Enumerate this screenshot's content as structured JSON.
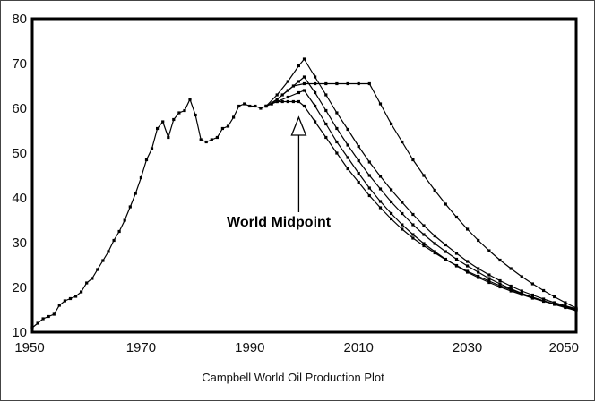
{
  "chart_data": {
    "type": "line",
    "title": "",
    "xlabel": "Campbell World Oil Production Plot",
    "ylabel": "",
    "xlim": [
      1950,
      2050
    ],
    "ylim": [
      10,
      80
    ],
    "x_ticks": [
      1950,
      1970,
      1990,
      2010,
      2030,
      2050
    ],
    "y_ticks": [
      10,
      20,
      30,
      40,
      50,
      60,
      70,
      80
    ],
    "grid": false,
    "legend": "none",
    "annotation": {
      "text": "World Midpoint",
      "points_to": [
        1999,
        62
      ]
    },
    "series": [
      {
        "x": [
          1950,
          1951,
          1952,
          1953,
          1954,
          1955,
          1956,
          1957,
          1958,
          1959,
          1960,
          1961,
          1962,
          1963,
          1964,
          1965,
          1966,
          1967,
          1968,
          1969,
          1970,
          1971,
          1972,
          1973,
          1974,
          1975,
          1976,
          1977,
          1978,
          1979,
          1980,
          1981,
          1982,
          1983,
          1984,
          1985,
          1986,
          1987,
          1988,
          1989,
          1990,
          1991,
          1992,
          1993,
          1994,
          1995,
          1996,
          1997,
          1998,
          1999,
          2000,
          2002,
          2004,
          2006,
          2008,
          2010,
          2012,
          2014,
          2016,
          2018,
          2020,
          2022,
          2024,
          2026,
          2028,
          2030,
          2032,
          2034,
          2036,
          2038,
          2040,
          2042,
          2044,
          2046,
          2048,
          2050
        ],
        "values": [
          11,
          12,
          13,
          13.5,
          14,
          16,
          17,
          17.5,
          18,
          19,
          21,
          22,
          24,
          26,
          28,
          30.5,
          32.5,
          35,
          38,
          41,
          44.5,
          48.5,
          51,
          55.5,
          57,
          53.5,
          57.5,
          59,
          59.5,
          62,
          58.5,
          53,
          52.5,
          53,
          53.5,
          55.5,
          56,
          58,
          60.5,
          61,
          60.5,
          60.5,
          60,
          60.5,
          61,
          61.5,
          61.5,
          61.5,
          61.5,
          61.5,
          60.5,
          57,
          53.5,
          50,
          46.5,
          43.5,
          40.5,
          37.8,
          35.3,
          33,
          31,
          29.3,
          27.7,
          26.2,
          24.9,
          23.6,
          22.5,
          21.4,
          20.4,
          19.5,
          18.6,
          17.8,
          17,
          16.3,
          15.6,
          15
        ]
      },
      {
        "x": [
          1993,
          1995,
          1997,
          1999,
          2000,
          2002,
          2004,
          2006,
          2008,
          2010,
          2012,
          2014,
          2016,
          2018,
          2020,
          2022,
          2024,
          2026,
          2028,
          2030,
          2032,
          2034,
          2036,
          2038,
          2040,
          2042,
          2044,
          2046,
          2048,
          2050
        ],
        "values": [
          60.5,
          61.5,
          62.5,
          63.5,
          64,
          60.5,
          56.5,
          52.5,
          49,
          45.5,
          42.2,
          39.2,
          36.5,
          34,
          31.8,
          29.8,
          28,
          26.3,
          24.8,
          23.4,
          22.2,
          21.1,
          20.1,
          19.2,
          18.4,
          17.6,
          16.9,
          16.3,
          15.7,
          15.2
        ]
      },
      {
        "x": [
          1993,
          1995,
          1997,
          1999,
          2000,
          2002,
          2004,
          2006,
          2008,
          2010,
          2012,
          2014,
          2016,
          2018,
          2020,
          2022,
          2024,
          2026,
          2028,
          2030,
          2032,
          2034,
          2036,
          2038,
          2040,
          2042,
          2044,
          2046,
          2048,
          2050
        ],
        "values": [
          60.5,
          62,
          64,
          66,
          67,
          63.5,
          59.5,
          55.5,
          51.8,
          48.3,
          45,
          42,
          39.1,
          36.5,
          34,
          31.8,
          29.8,
          28,
          26.3,
          24.8,
          23.4,
          22,
          20.8,
          19.7,
          18.7,
          17.8,
          17,
          16.2,
          15.5,
          14.8
        ]
      },
      {
        "x": [
          1993,
          1995,
          1997,
          1999,
          2000,
          2002,
          2004,
          2006,
          2008,
          2010,
          2012,
          2014,
          2016,
          2018,
          2020,
          2022,
          2024,
          2026,
          2028,
          2030,
          2032,
          2034,
          2036,
          2038,
          2040,
          2042,
          2044,
          2046,
          2048,
          2050
        ],
        "values": [
          60.5,
          63,
          66,
          69.5,
          71,
          67,
          63,
          59,
          55.3,
          51.5,
          48,
          44.8,
          41.8,
          39,
          36.3,
          33.8,
          31.5,
          29.5,
          27.6,
          25.8,
          24.2,
          22.8,
          21.5,
          20.3,
          19.2,
          18.3,
          17.4,
          16.6,
          15.9,
          15.2
        ]
      },
      {
        "x": [
          1994,
          1996,
          1998,
          2000,
          2002,
          2004,
          2006,
          2008,
          2010,
          2012,
          2014,
          2016,
          2018,
          2020,
          2022,
          2024,
          2026,
          2028,
          2030,
          2032,
          2034,
          2036,
          2038,
          2040,
          2042,
          2044,
          2046,
          2048,
          2050
        ],
        "values": [
          61,
          63,
          65,
          65.5,
          65.5,
          65.5,
          65.5,
          65.5,
          65.5,
          65.5,
          61,
          56.5,
          52.5,
          48.5,
          45,
          41.7,
          38.6,
          35.7,
          33,
          30.5,
          28.2,
          26.1,
          24.2,
          22.4,
          20.8,
          19.3,
          17.9,
          16.6,
          15.4
        ]
      }
    ]
  }
}
